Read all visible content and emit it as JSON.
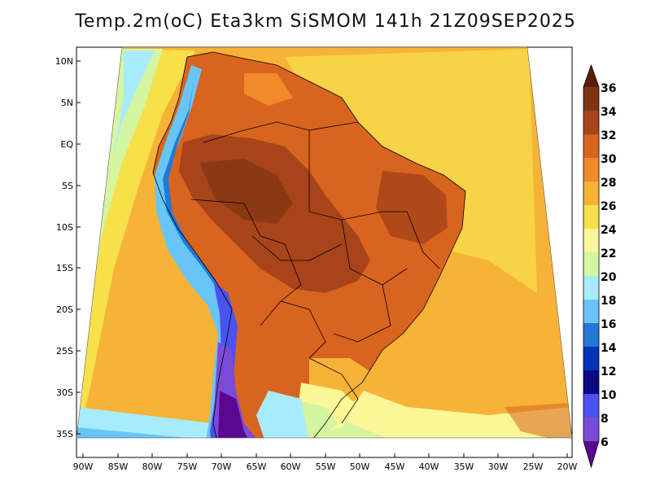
{
  "title": "Temp.2m(oC) Eta3km SiSMOM 141h 21Z09SEP2025",
  "map": {
    "lat_labels": [
      "10N",
      "5N",
      "EQ",
      "5S",
      "10S",
      "15S",
      "20S",
      "25S",
      "30S",
      "35S"
    ],
    "lon_labels": [
      "90W",
      "85W",
      "80W",
      "75W",
      "70W",
      "65W",
      "60W",
      "55W",
      "50W",
      "45W",
      "40W",
      "35W",
      "30W",
      "25W",
      "20W"
    ]
  },
  "colorbar": {
    "labels": [
      "36",
      "34",
      "32",
      "30",
      "28",
      "26",
      "24",
      "22",
      "20",
      "18",
      "16",
      "14",
      "12",
      "10",
      "8",
      "6"
    ],
    "colors": [
      "#5a1d05",
      "#7e3512",
      "#a8441a",
      "#d9641f",
      "#f08a2a",
      "#f6b338",
      "#f8e04a",
      "#fbf798",
      "#d5f5a0",
      "#a8ecfb",
      "#68c5f8",
      "#2279d6",
      "#0033b8",
      "#0a0a82",
      "#4a52f0",
      "#7a4bd8",
      "#9a2ecb",
      "#5a0890"
    ]
  }
}
